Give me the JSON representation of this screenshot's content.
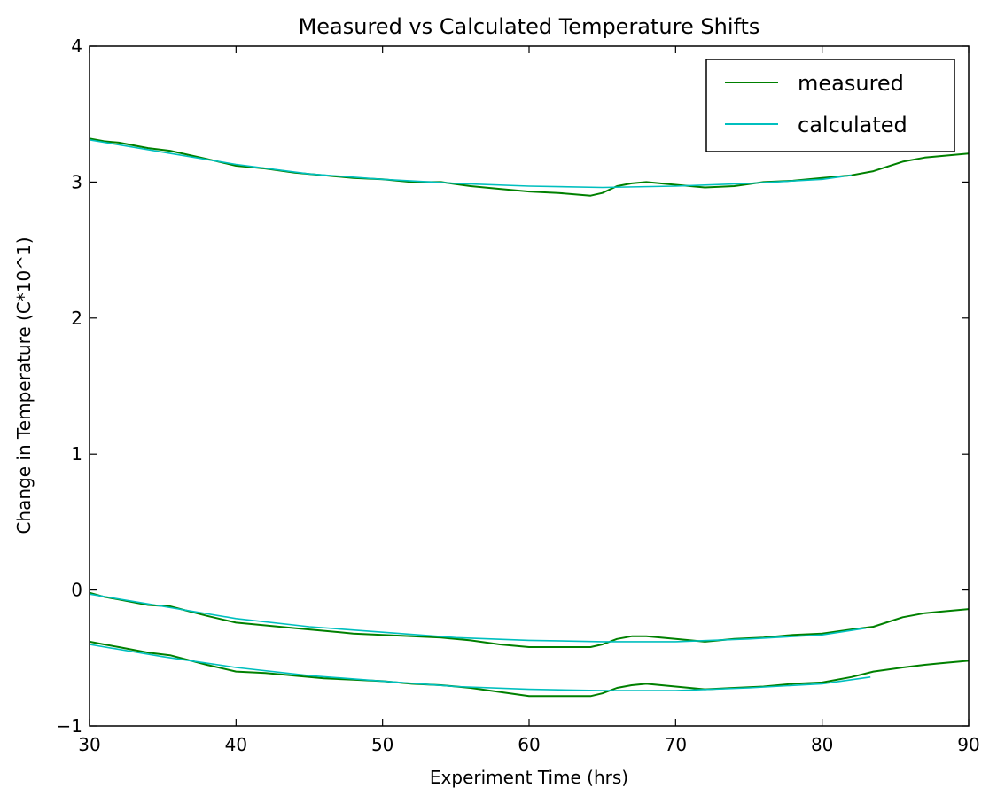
{
  "chart_data": {
    "type": "line",
    "title": "Measured vs Calculated Temperature Shifts",
    "xlabel": "Experiment Time (hrs)",
    "ylabel": "Change in Temperature (C*10^1)",
    "xlim": [
      30,
      90
    ],
    "ylim": [
      -1,
      4
    ],
    "x_ticks": [
      30,
      40,
      50,
      60,
      70,
      80,
      90
    ],
    "y_ticks": [
      -1,
      0,
      1,
      2,
      3,
      4
    ],
    "x_tick_labels": [
      "30",
      "40",
      "50",
      "60",
      "70",
      "80",
      "90"
    ],
    "y_tick_labels": [
      "−1",
      "0",
      "1",
      "2",
      "3",
      "4"
    ],
    "grid": false,
    "legend_position": "top-right",
    "series": [
      {
        "name": "measured",
        "color": "#008000",
        "groups": [
          {
            "x": [
              30,
              31,
              32,
              33,
              34,
              35.5,
              38,
              40,
              42,
              44,
              46,
              48,
              50,
              52,
              54,
              56,
              58,
              60,
              62,
              64.2,
              65,
              66,
              67,
              68,
              70,
              72,
              74,
              76,
              78,
              80,
              82,
              83.5,
              85.5,
              87,
              88,
              90
            ],
            "y": [
              3.32,
              3.3,
              3.29,
              3.27,
              3.25,
              3.23,
              3.17,
              3.12,
              3.1,
              3.07,
              3.05,
              3.03,
              3.02,
              3.0,
              3.0,
              2.97,
              2.95,
              2.93,
              2.92,
              2.9,
              2.92,
              2.97,
              2.99,
              3.0,
              2.98,
              2.96,
              2.97,
              3.0,
              3.01,
              3.03,
              3.05,
              3.08,
              3.15,
              3.18,
              3.19,
              3.21
            ]
          },
          {
            "x": [
              30,
              31,
              32,
              33,
              34,
              35.5,
              38,
              40,
              42,
              44,
              46,
              48,
              50,
              52,
              54,
              56,
              58,
              60,
              62,
              64.2,
              65,
              66,
              67,
              68,
              70,
              72,
              74,
              76,
              78,
              80,
              82,
              83.5,
              85.5,
              87,
              88,
              90
            ],
            "y": [
              -0.02,
              -0.05,
              -0.07,
              -0.09,
              -0.11,
              -0.12,
              -0.19,
              -0.24,
              -0.26,
              -0.28,
              -0.3,
              -0.32,
              -0.33,
              -0.34,
              -0.35,
              -0.37,
              -0.4,
              -0.42,
              -0.42,
              -0.42,
              -0.4,
              -0.36,
              -0.34,
              -0.34,
              -0.36,
              -0.38,
              -0.36,
              -0.35,
              -0.33,
              -0.32,
              -0.29,
              -0.27,
              -0.2,
              -0.17,
              -0.16,
              -0.14
            ]
          },
          {
            "x": [
              30,
              31,
              32,
              33,
              34,
              35.5,
              38,
              40,
              42,
              44,
              46,
              48,
              50,
              52,
              54,
              56,
              58,
              60,
              62,
              64.2,
              65,
              66,
              67,
              68,
              70,
              72,
              74,
              76,
              78,
              80,
              82,
              83.5,
              85.5,
              87,
              88,
              90
            ],
            "y": [
              -0.38,
              -0.4,
              -0.42,
              -0.44,
              -0.46,
              -0.48,
              -0.55,
              -0.6,
              -0.61,
              -0.63,
              -0.65,
              -0.66,
              -0.67,
              -0.69,
              -0.7,
              -0.72,
              -0.75,
              -0.78,
              -0.78,
              -0.78,
              -0.76,
              -0.72,
              -0.7,
              -0.69,
              -0.71,
              -0.73,
              -0.72,
              -0.71,
              -0.69,
              -0.68,
              -0.64,
              -0.6,
              -0.57,
              -0.55,
              -0.54,
              -0.52
            ]
          }
        ]
      },
      {
        "name": "calculated",
        "color": "#00bfbf",
        "groups": [
          {
            "x": [
              30,
              35,
              40,
              45,
              50,
              55,
              60,
              65,
              70,
              75,
              80,
              82
            ],
            "y": [
              3.31,
              3.22,
              3.13,
              3.06,
              3.02,
              2.99,
              2.97,
              2.96,
              2.97,
              2.99,
              3.02,
              3.05
            ]
          },
          {
            "x": [
              30,
              35,
              40,
              45,
              50,
              55,
              60,
              65,
              70,
              75,
              80,
              83
            ],
            "y": [
              -0.03,
              -0.12,
              -0.21,
              -0.27,
              -0.31,
              -0.35,
              -0.37,
              -0.38,
              -0.38,
              -0.36,
              -0.33,
              -0.28
            ]
          },
          {
            "x": [
              30,
              35,
              40,
              45,
              50,
              55,
              60,
              65,
              70,
              75,
              80,
              83.3
            ],
            "y": [
              -0.4,
              -0.49,
              -0.57,
              -0.63,
              -0.67,
              -0.71,
              -0.73,
              -0.74,
              -0.74,
              -0.72,
              -0.69,
              -0.64
            ]
          }
        ]
      }
    ]
  }
}
